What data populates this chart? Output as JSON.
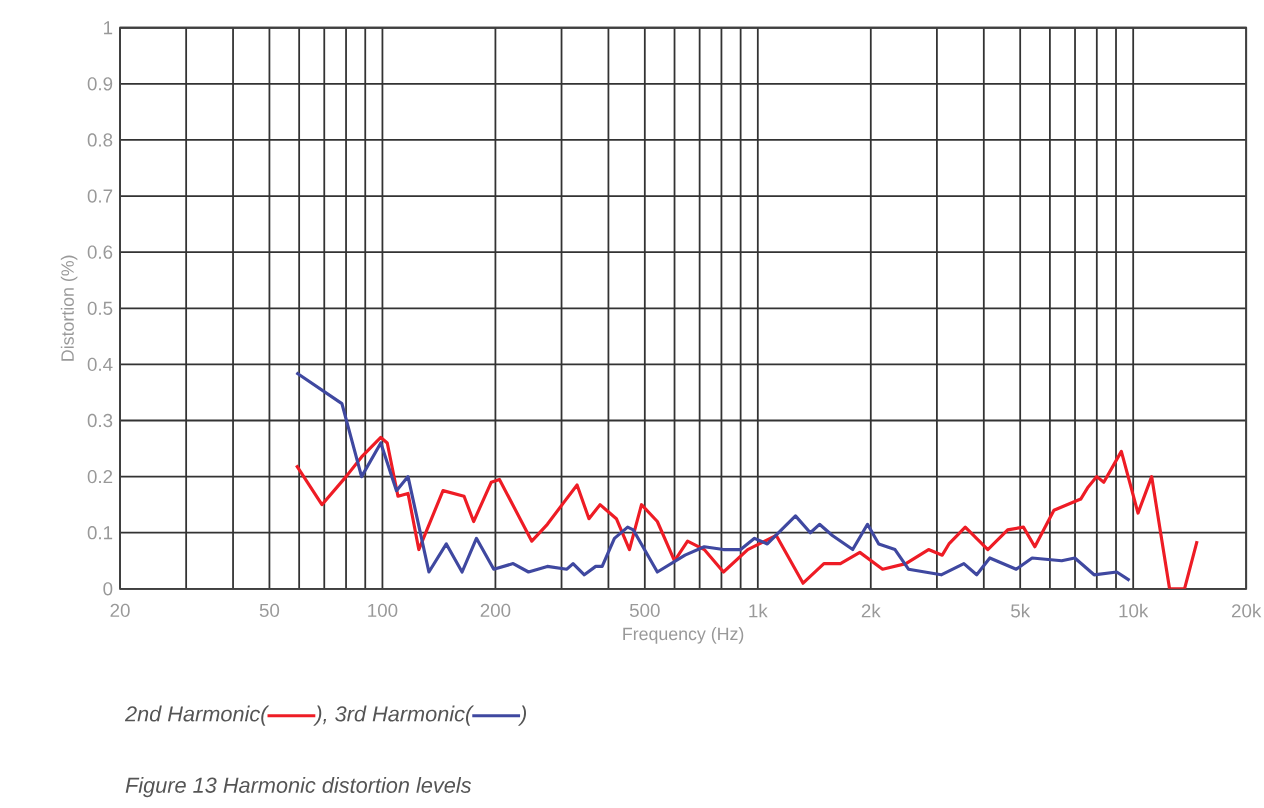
{
  "chart_data": {
    "type": "line",
    "xlabel": "Frequency (Hz)",
    "ylabel": "Distortion (%)",
    "log": "x",
    "xlim": [
      20,
      20000
    ],
    "ylim": [
      0,
      1
    ],
    "xticks": [
      20,
      {
        "value": 30,
        "label": null
      },
      {
        "value": 40,
        "label": null
      },
      50,
      {
        "value": 60,
        "label": null
      },
      {
        "value": 70,
        "label": null
      },
      {
        "value": 80,
        "label": null
      },
      {
        "value": 90,
        "label": null
      },
      100,
      200,
      {
        "value": 300,
        "label": null
      },
      {
        "value": 400,
        "label": null
      },
      500,
      {
        "value": 600,
        "label": null
      },
      {
        "value": 700,
        "label": null
      },
      {
        "value": 800,
        "label": null
      },
      {
        "value": 900,
        "label": null
      },
      {
        "value": 1000,
        "label": "1k"
      },
      {
        "value": 2000,
        "label": "2k"
      },
      {
        "value": 3000,
        "label": null
      },
      {
        "value": 4000,
        "label": null
      },
      {
        "value": 5000,
        "label": "5k"
      },
      {
        "value": 6000,
        "label": null
      },
      {
        "value": 7000,
        "label": null
      },
      {
        "value": 8000,
        "label": null
      },
      {
        "value": 9000,
        "label": null
      },
      {
        "value": 10000,
        "label": "10k"
      },
      {
        "value": 20000,
        "label": "20k"
      }
    ],
    "yticks": [
      0,
      0.1,
      0.2,
      0.3,
      0.4,
      0.5,
      0.6,
      0.7,
      0.8,
      0.9,
      1
    ],
    "grid": true,
    "legend": "bottom",
    "marker": "none",
    "line_style": "solid",
    "series": [
      {
        "name": "2nd Harmonic(",
        "color": "#ee1c25",
        "x": [
          59,
          69,
          80,
          88,
          99,
          103,
          110,
          117,
          125,
          145,
          165,
          175,
          195,
          205,
          250,
          275,
          305,
          330,
          355,
          380,
          420,
          455,
          490,
          540,
          600,
          650,
          720,
          810,
          940,
          1120,
          1320,
          1500,
          1660,
          1870,
          2150,
          2480,
          2850,
          3100,
          3230,
          3570,
          4100,
          4630,
          5100,
          5470,
          6150,
          7250,
          7560,
          8000,
          8350,
          9300,
          10300,
          11200,
          12500,
          13700,
          14800
        ],
        "values": [
          0.22,
          0.15,
          0.2,
          0.235,
          0.27,
          0.26,
          0.165,
          0.17,
          0.07,
          0.175,
          0.165,
          0.12,
          0.19,
          0.195,
          0.085,
          0.115,
          0.155,
          0.185,
          0.125,
          0.15,
          0.125,
          0.07,
          0.15,
          0.12,
          0.05,
          0.085,
          0.07,
          0.03,
          0.07,
          0.095,
          0.01,
          0.045,
          0.045,
          0.065,
          0.035,
          0.045,
          0.07,
          0.06,
          0.08,
          0.11,
          0.07,
          0.105,
          0.11,
          0.075,
          0.14,
          0.16,
          0.18,
          0.2,
          0.19,
          0.245,
          0.135,
          0.2,
          0,
          0,
          0.085
        ]
      },
      {
        "name": "3rd Harmonic(",
        "color": "#3f48a0",
        "x": [
          59,
          78,
          88,
          99,
          109,
          117,
          133,
          148,
          163,
          178,
          198,
          223,
          245,
          275,
          310,
          322,
          345,
          370,
          385,
          415,
          450,
          466,
          540,
          640,
          720,
          810,
          900,
          980,
          1060,
          1260,
          1380,
          1460,
          1580,
          1790,
          1960,
          2100,
          2320,
          2520,
          3080,
          3540,
          3830,
          4150,
          4880,
          5380,
          6450,
          6990,
          7870,
          9040,
          9780
        ],
        "values": [
          0.385,
          0.33,
          0.2,
          0.26,
          0.175,
          0.2,
          0.03,
          0.08,
          0.03,
          0.09,
          0.035,
          0.045,
          0.03,
          0.04,
          0.035,
          0.045,
          0.025,
          0.04,
          0.04,
          0.09,
          0.11,
          0.105,
          0.03,
          0.06,
          0.075,
          0.07,
          0.07,
          0.09,
          0.08,
          0.13,
          0.1,
          0.115,
          0.095,
          0.07,
          0.115,
          0.08,
          0.07,
          0.035,
          0.025,
          0.045,
          0.025,
          0.055,
          0.035,
          0.055,
          0.05,
          0.055,
          0.025,
          0.03,
          0.015
        ]
      }
    ],
    "annotations": [
      "),",
      ")",
      "Figure 13 Harmonic distortion levels"
    ]
  }
}
